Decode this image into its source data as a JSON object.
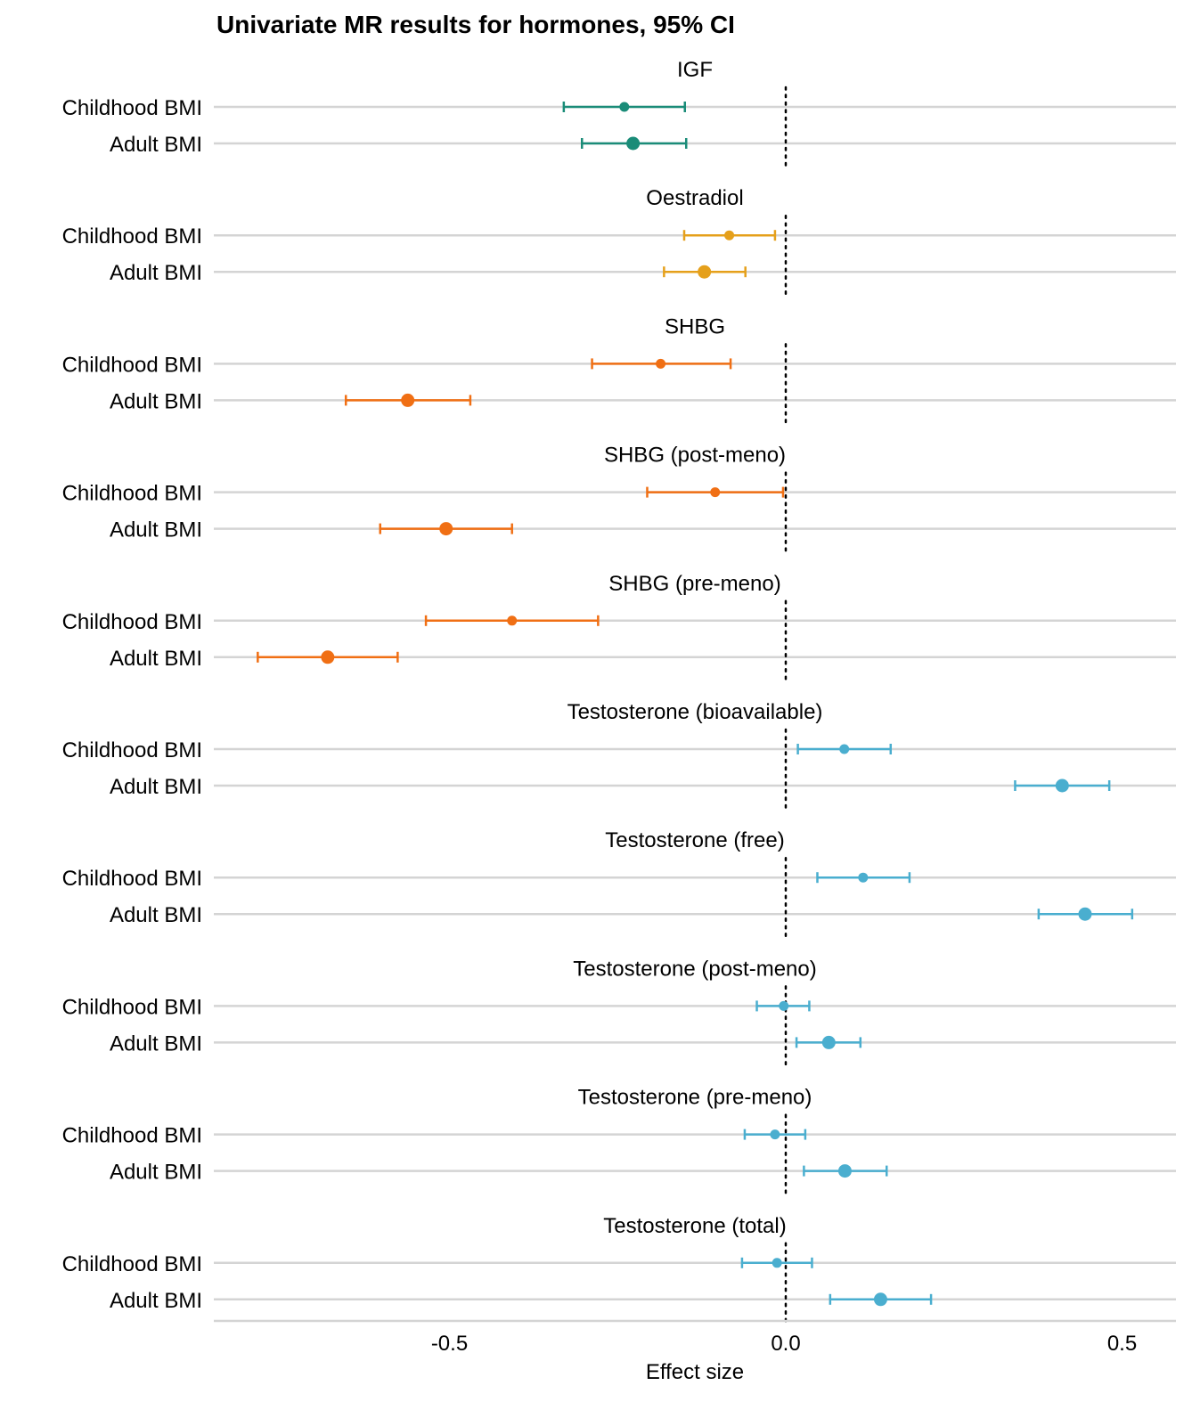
{
  "chart_data": {
    "type": "scatter",
    "title": "Univariate MR results for hormones, 95% CI",
    "xlabel": "Effect size",
    "ylabel": "",
    "xlim": [
      -0.85,
      0.58
    ],
    "xticks": [
      -0.5,
      0.0,
      0.5
    ],
    "xtick_labels": [
      "-0.5",
      "0.0",
      "0.5"
    ],
    "reference_line": 0,
    "grid": "horizontal",
    "row_labels": [
      "Childhood BMI",
      "Adult BMI"
    ],
    "facets": [
      {
        "name": "IGF",
        "color": "#1a8c78",
        "rows": [
          {
            "label": "Childhood BMI",
            "estimate": -0.24,
            "lower": -0.33,
            "upper": -0.15
          },
          {
            "label": "Adult BMI",
            "estimate": -0.227,
            "lower": -0.303,
            "upper": -0.148
          }
        ]
      },
      {
        "name": "Oestradiol",
        "color": "#e5a01b",
        "rows": [
          {
            "label": "Childhood BMI",
            "estimate": -0.084,
            "lower": -0.151,
            "upper": -0.016
          },
          {
            "label": "Adult BMI",
            "estimate": -0.121,
            "lower": -0.181,
            "upper": -0.06
          }
        ]
      },
      {
        "name": "SHBG",
        "color": "#f06f14",
        "rows": [
          {
            "label": "Childhood BMI",
            "estimate": -0.186,
            "lower": -0.288,
            "upper": -0.082
          },
          {
            "label": "Adult BMI",
            "estimate": -0.562,
            "lower": -0.654,
            "upper": -0.469
          }
        ]
      },
      {
        "name": "SHBG (post-meno)",
        "color": "#f06f14",
        "rows": [
          {
            "label": "Childhood BMI",
            "estimate": -0.105,
            "lower": -0.206,
            "upper": -0.004
          },
          {
            "label": "Adult BMI",
            "estimate": -0.505,
            "lower": -0.603,
            "upper": -0.407
          }
        ]
      },
      {
        "name": "SHBG (pre-meno)",
        "color": "#f06f14",
        "rows": [
          {
            "label": "Childhood BMI",
            "estimate": -0.407,
            "lower": -0.535,
            "upper": -0.279
          },
          {
            "label": "Adult BMI",
            "estimate": -0.681,
            "lower": -0.785,
            "upper": -0.577
          }
        ]
      },
      {
        "name": "Testosterone (bioavailable)",
        "color": "#4aaecf",
        "rows": [
          {
            "label": "Childhood BMI",
            "estimate": 0.087,
            "lower": 0.018,
            "upper": 0.156
          },
          {
            "label": "Adult BMI",
            "estimate": 0.411,
            "lower": 0.341,
            "upper": 0.481
          }
        ]
      },
      {
        "name": "Testosterone (free)",
        "color": "#4aaecf",
        "rows": [
          {
            "label": "Childhood BMI",
            "estimate": 0.115,
            "lower": 0.047,
            "upper": 0.184
          },
          {
            "label": "Adult BMI",
            "estimate": 0.445,
            "lower": 0.376,
            "upper": 0.515
          }
        ]
      },
      {
        "name": "Testosterone (post-meno)",
        "color": "#4aaecf",
        "rows": [
          {
            "label": "Childhood BMI",
            "estimate": -0.003,
            "lower": -0.043,
            "upper": 0.035
          },
          {
            "label": "Adult BMI",
            "estimate": 0.064,
            "lower": 0.016,
            "upper": 0.111
          }
        ]
      },
      {
        "name": "Testosterone (pre-meno)",
        "color": "#4aaecf",
        "rows": [
          {
            "label": "Childhood BMI",
            "estimate": -0.016,
            "lower": -0.061,
            "upper": 0.029
          },
          {
            "label": "Adult BMI",
            "estimate": 0.088,
            "lower": 0.027,
            "upper": 0.15
          }
        ]
      },
      {
        "name": "Testosterone (total)",
        "color": "#4aaecf",
        "rows": [
          {
            "label": "Childhood BMI",
            "estimate": -0.013,
            "lower": -0.065,
            "upper": 0.039
          },
          {
            "label": "Adult BMI",
            "estimate": 0.141,
            "lower": 0.066,
            "upper": 0.216
          }
        ]
      }
    ]
  }
}
